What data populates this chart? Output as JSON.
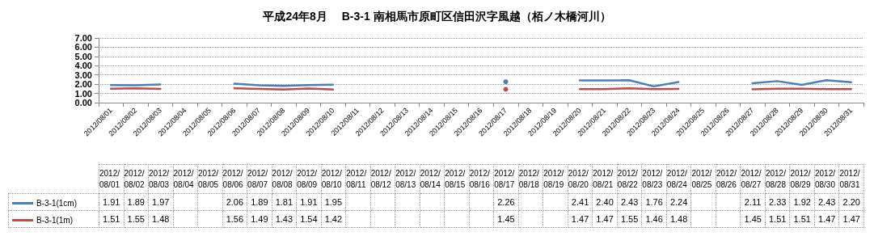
{
  "chart_data": {
    "type": "line",
    "title": "平成24年8月　 B-3-1 南相馬市原町区信田沢字風越（栢ノ木橋河川）",
    "categories": [
      "2012/08/01",
      "2012/08/02",
      "2012/08/03",
      "2012/08/04",
      "2012/08/05",
      "2012/08/06",
      "2012/08/07",
      "2012/08/08",
      "2012/08/09",
      "2012/08/10",
      "2012/08/11",
      "2012/08/12",
      "2012/08/13",
      "2012/08/14",
      "2012/08/15",
      "2012/08/16",
      "2012/08/17",
      "2012/08/18",
      "2012/08/19",
      "2012/08/20",
      "2012/08/21",
      "2012/08/22",
      "2012/08/23",
      "2012/08/24",
      "2012/08/25",
      "2012/08/26",
      "2012/08/27",
      "2012/08/28",
      "2012/08/29",
      "2012/08/30",
      "2012/08/31"
    ],
    "series": [
      {
        "name": "B-3-1(1cm)",
        "color": "#4a7ebb",
        "values": [
          1.91,
          1.89,
          1.97,
          null,
          null,
          2.06,
          1.89,
          1.81,
          1.91,
          1.95,
          null,
          null,
          null,
          null,
          null,
          null,
          2.26,
          null,
          null,
          2.41,
          2.4,
          2.43,
          1.76,
          2.24,
          null,
          null,
          2.11,
          2.33,
          1.92,
          2.43,
          2.2
        ],
        "value_labels": [
          "1.91",
          "1.89",
          "1.97",
          null,
          null,
          "2.06",
          "1.89",
          "1.81",
          "1.91",
          "1.95",
          null,
          null,
          null,
          null,
          null,
          null,
          "2.26",
          null,
          null,
          "2.41",
          "2.40",
          "2.43",
          "1.76",
          "2.24",
          null,
          null,
          "2.11",
          "2.33",
          "1.92",
          "2.43",
          "2.20"
        ]
      },
      {
        "name": "B-3-1(1m)",
        "color": "#be4b48",
        "values": [
          1.51,
          1.55,
          1.48,
          null,
          null,
          1.56,
          1.49,
          1.43,
          1.54,
          1.42,
          null,
          null,
          null,
          null,
          null,
          null,
          1.45,
          null,
          null,
          1.47,
          1.47,
          1.55,
          1.46,
          1.48,
          null,
          null,
          1.45,
          1.51,
          1.51,
          1.47,
          1.47
        ]
      }
    ],
    "ylim": [
      0,
      7
    ],
    "yticks": [
      {
        "value": 0,
        "label": "0.00"
      },
      {
        "value": 1,
        "label": "1.00"
      },
      {
        "value": 2,
        "label": "2.00"
      },
      {
        "value": 3,
        "label": "3.00"
      },
      {
        "value": 4,
        "label": "4.00"
      },
      {
        "value": 5,
        "label": "5.00"
      },
      {
        "value": 6,
        "label": "6.00"
      },
      {
        "value": 7,
        "label": "7.00"
      }
    ],
    "grid": "y",
    "legend": "bottom left",
    "data_labels": true,
    "marker": "none",
    "line_style": "solid"
  }
}
